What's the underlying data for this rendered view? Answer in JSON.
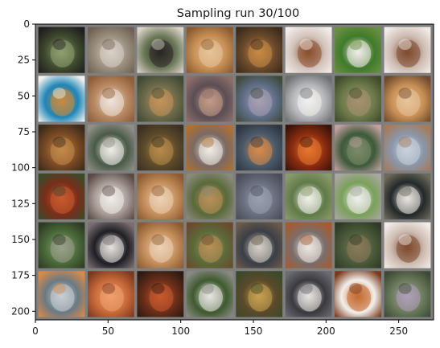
{
  "chart_data": {
    "type": "image-grid",
    "title": "Sampling run 30/100",
    "xlabel": "",
    "ylabel": "",
    "xlim": [
      0,
      274
    ],
    "ylim": [
      206,
      0
    ],
    "x_ticks": [
      0,
      50,
      100,
      150,
      200,
      250
    ],
    "y_ticks": [
      0,
      25,
      50,
      75,
      100,
      125,
      150,
      175,
      200
    ],
    "grid_rows": 6,
    "grid_cols": 8,
    "tile_size": 32,
    "tile_padding": 2,
    "frame_color": "#7f7f7f",
    "grid": false
  },
  "tiles": [
    [
      "#3f4a2e",
      "#8fa070",
      "#1e1e1e"
    ],
    [
      "#9b8f7f",
      "#d8d1c8",
      "#6f6253"
    ],
    [
      "#6d7a5a",
      "#2a2624",
      "#d9d2c8"
    ],
    [
      "#c78f55",
      "#e7c49a",
      "#8a5a30"
    ],
    [
      "#6a4a2c",
      "#c98a46",
      "#3d2a1a"
    ],
    [
      "#d2c3bc",
      "#8a4f2c",
      "#f3ece8"
    ],
    [
      "#3f7a2b",
      "#f0ede9",
      "#6a8f40"
    ],
    [
      "#cdbbb2",
      "#7e4a2e",
      "#f2ebe7"
    ],
    [
      "#1e86b8",
      "#c88a3e",
      "#f1f1ef"
    ],
    [
      "#b88a63",
      "#eee4da",
      "#8e5c38"
    ],
    [
      "#6d6a4b",
      "#c49459",
      "#3f4a33"
    ],
    [
      "#5b4e54",
      "#c49a86",
      "#8d6e6a"
    ],
    [
      "#5f6e88",
      "#a7a0b5",
      "#3e4a3a"
    ],
    [
      "#b4b6b9",
      "#f2f1ef",
      "#6d6f72"
    ],
    [
      "#6d7a4a",
      "#a59270",
      "#3e4a2a"
    ],
    [
      "#c78f55",
      "#e7c49a",
      "#6f4a2c"
    ],
    [
      "#7a4a24",
      "#c48a48",
      "#3a2a1a"
    ],
    [
      "#4a5a48",
      "#f1ede8",
      "#8f8f88"
    ],
    [
      "#5c4a2a",
      "#b88a4a",
      "#3a3022"
    ],
    [
      "#7a6a64",
      "#f0ebe6",
      "#b0702e"
    ],
    [
      "#4a5a6a",
      "#d88a4a",
      "#2e3640"
    ],
    [
      "#8a2c10",
      "#e8762e",
      "#3a140a"
    ],
    [
      "#3e5a3a",
      "#7a8a6a",
      "#c0a0a0"
    ],
    [
      "#8a96a8",
      "#c9d1dc",
      "#a67a5a"
    ],
    [
      "#7a2e1a",
      "#c85a2e",
      "#3a4a2a"
    ],
    [
      "#a89c98",
      "#f1ece9",
      "#5a4a44"
    ],
    [
      "#c48e5c",
      "#ecd2b4",
      "#8a5a30"
    ],
    [
      "#5a6a3a",
      "#b89058",
      "#8a8a7a"
    ],
    [
      "#6a6e7e",
      "#9aa0b0",
      "#4a4e5a"
    ],
    [
      "#5f7a48",
      "#f1f0ea",
      "#8a9a6a"
    ],
    [
      "#7aa05a",
      "#efefec",
      "#a8a8a0"
    ],
    [
      "#23282a",
      "#e9e5df",
      "#6d6a5a"
    ],
    [
      "#4a6a3a",
      "#9aa08a",
      "#2e3a24"
    ],
    [
      "#1e1e24",
      "#e6e2de",
      "#7a6e70"
    ],
    [
      "#c48e5c",
      "#ecd2b4",
      "#8a5a30"
    ],
    [
      "#5a6a3a",
      "#b89058",
      "#6a4a2a"
    ],
    [
      "#3a3e46",
      "#d6cfc6",
      "#6a5a4a"
    ],
    [
      "#7a6e6a",
      "#ece6e0",
      "#a85a2e"
    ],
    [
      "#4a5a3a",
      "#8a7a5a",
      "#2e3a24"
    ],
    [
      "#cdbbb2",
      "#7e4a2e",
      "#f2ebe7"
    ],
    [
      "#6a7a84",
      "#c9cfd4",
      "#d88a4a"
    ],
    [
      "#c86a3a",
      "#f0a070",
      "#7a3a1e"
    ],
    [
      "#6a2e1a",
      "#c85a2e",
      "#2e1a10"
    ],
    [
      "#3e5a2e",
      "#e8e6e2",
      "#8a8a84"
    ],
    [
      "#5a4a2a",
      "#c8a050",
      "#3a4a2a"
    ],
    [
      "#3a3a3e",
      "#e8e4e0",
      "#6a6a72"
    ],
    [
      "#f2efec",
      "#c46a2e",
      "#7a3a1a"
    ],
    [
      "#6a7a5a",
      "#b0a0b8",
      "#3e4a36"
    ]
  ]
}
